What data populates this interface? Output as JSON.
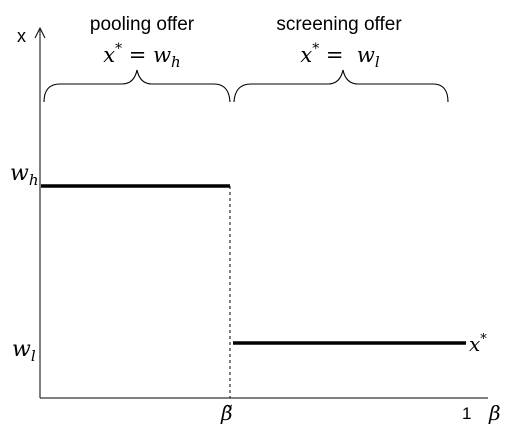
{
  "axes": {
    "y_label": "x",
    "x_label": "β",
    "x_end_tick": "1",
    "x_threshold_tick": "β̃"
  },
  "levels": {
    "w_h": "w",
    "w_h_sub": "h",
    "w_l": "w",
    "w_l_sub": "l"
  },
  "regions": {
    "pooling": {
      "title": "pooling offer",
      "eq_lhs": "x",
      "eq_sup": "*",
      "eq_op": " = ",
      "eq_rhs": "w",
      "eq_sub": "h"
    },
    "screening": {
      "title": "screening offer",
      "eq_lhs": "x",
      "eq_sup": "*",
      "eq_op": " =  ",
      "eq_rhs": "w",
      "eq_sub": "l"
    }
  },
  "curve_label": {
    "text": "x",
    "sup": "*"
  }
}
